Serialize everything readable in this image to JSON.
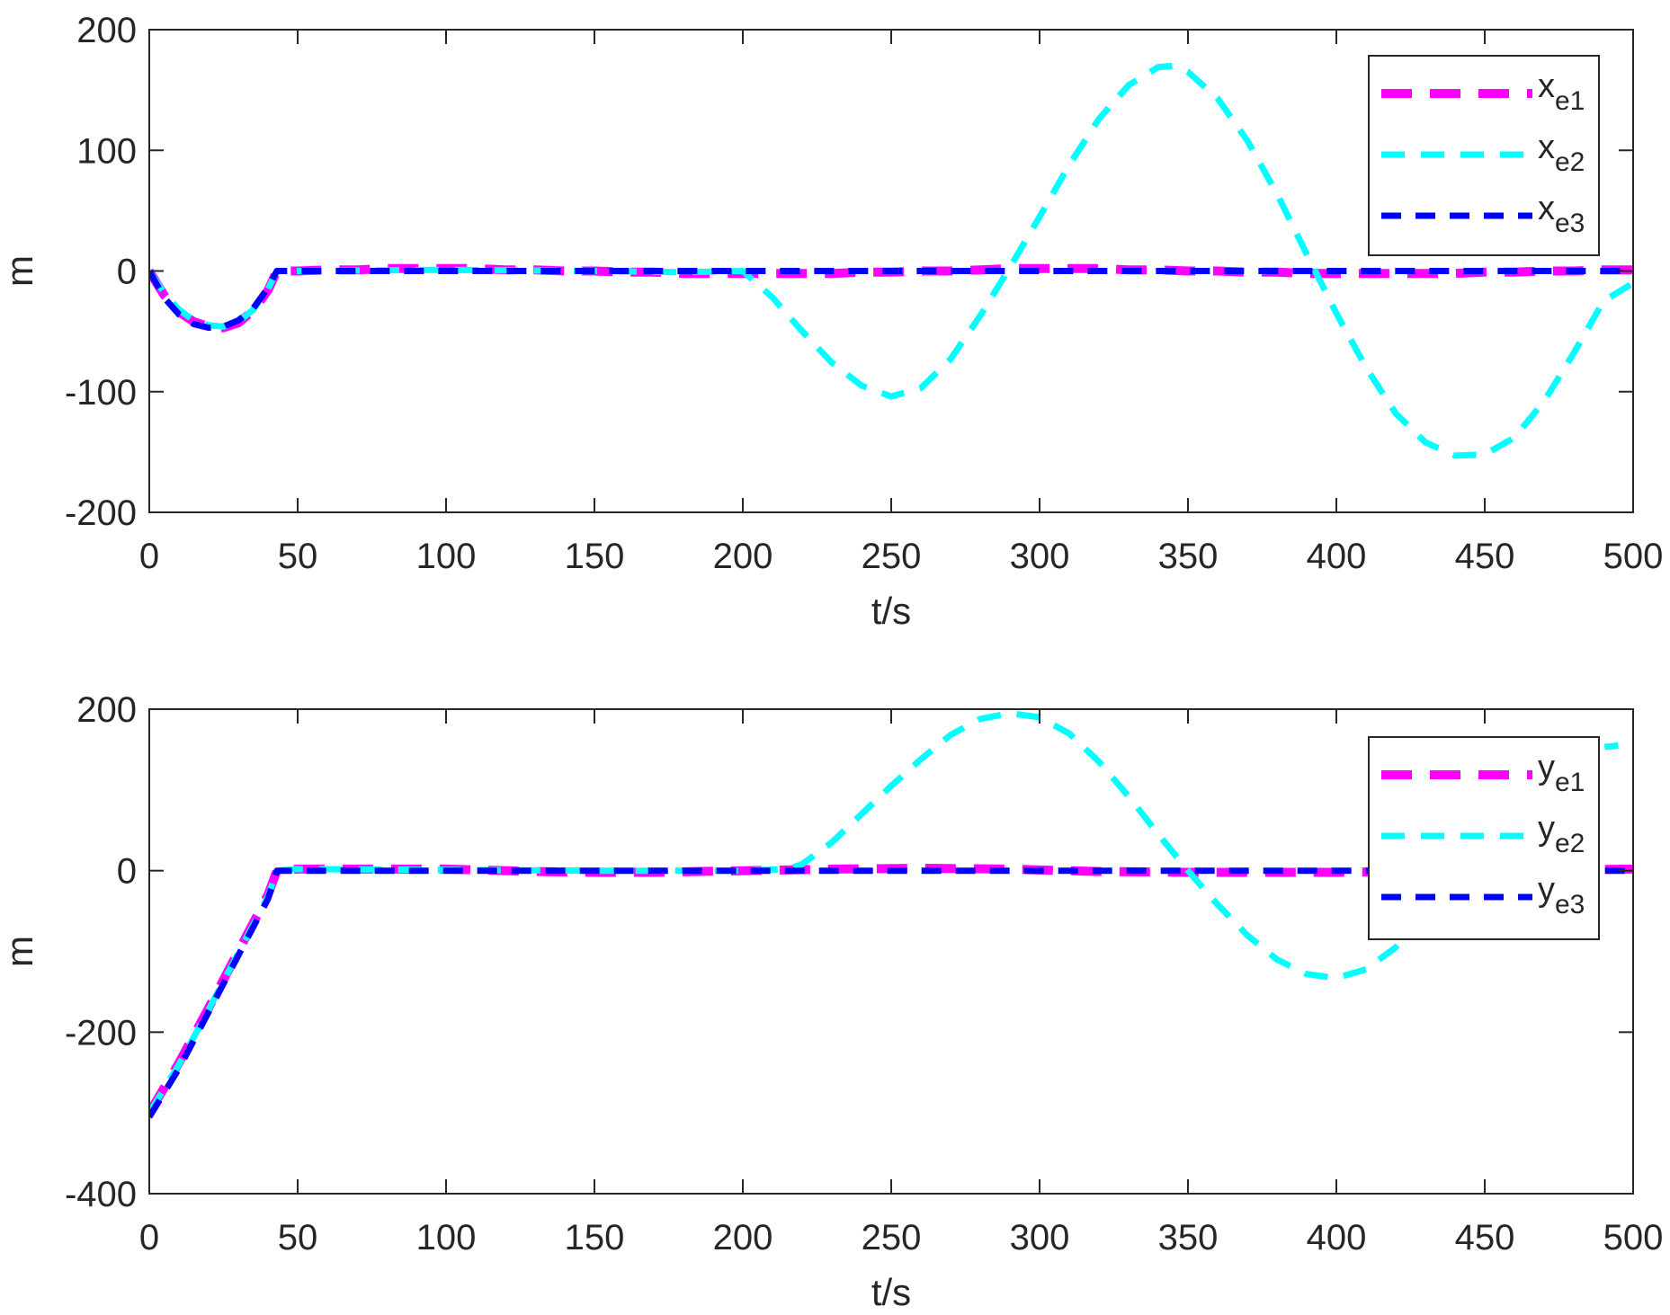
{
  "chart_data": [
    {
      "type": "line",
      "xlabel": "t/s",
      "ylabel": "m",
      "xlim": [
        0,
        500
      ],
      "ylim": [
        -200,
        200
      ],
      "xticks": [
        0,
        50,
        100,
        150,
        200,
        250,
        300,
        350,
        400,
        450,
        500
      ],
      "yticks": [
        -200,
        -100,
        0,
        100,
        200
      ],
      "grid": false,
      "legend_position": "top-right",
      "series": [
        {
          "name": "x_e1",
          "label_base": "x",
          "label_sub": "e1",
          "color": "#ff00ff",
          "style": "long-dash",
          "x": [
            0,
            5,
            10,
            15,
            20,
            25,
            30,
            35,
            40,
            43,
            50,
            60,
            70,
            80,
            90,
            100,
            110,
            120,
            130,
            140,
            150,
            160,
            170,
            180,
            190,
            200,
            210,
            220,
            230,
            240,
            250,
            260,
            270,
            280,
            290,
            300,
            310,
            320,
            330,
            340,
            350,
            360,
            370,
            380,
            390,
            400,
            410,
            420,
            430,
            440,
            450,
            460,
            470,
            480,
            490,
            500
          ],
          "y": [
            0,
            -20,
            -34,
            -42,
            -46,
            -47,
            -43,
            -33,
            -16,
            0,
            0,
            1,
            1,
            2,
            2,
            2,
            2,
            1,
            1,
            0,
            0,
            -1,
            -1,
            -2,
            -2,
            -2,
            -2,
            -2,
            -2,
            -1,
            -1,
            0,
            0,
            1,
            2,
            2,
            2,
            2,
            1,
            1,
            0,
            0,
            -1,
            -1,
            -2,
            -2,
            -2,
            -2,
            -2,
            -2,
            -1,
            -1,
            0,
            0,
            1,
            1
          ]
        },
        {
          "name": "x_e2",
          "label_base": "x",
          "label_sub": "e2",
          "color": "#00ffff",
          "style": "dash",
          "x": [
            0,
            5,
            10,
            15,
            20,
            25,
            30,
            35,
            40,
            43,
            50,
            100,
            150,
            180,
            200,
            210,
            220,
            230,
            240,
            250,
            260,
            270,
            280,
            290,
            300,
            310,
            320,
            330,
            340,
            345,
            350,
            360,
            370,
            380,
            390,
            400,
            410,
            420,
            430,
            440,
            450,
            460,
            470,
            480,
            490,
            500
          ],
          "y": [
            0,
            -18,
            -32,
            -41,
            -45,
            -46,
            -42,
            -32,
            -15,
            0,
            0,
            1,
            0,
            -1,
            0,
            -22,
            -50,
            -76,
            -95,
            -104,
            -97,
            -73,
            -37,
            3,
            45,
            88,
            126,
            154,
            169,
            170,
            165,
            143,
            108,
            64,
            14,
            -35,
            -80,
            -118,
            -142,
            -153,
            -152,
            -138,
            -108,
            -68,
            -25,
            -10
          ]
        },
        {
          "name": "x_e3",
          "label_base": "x",
          "label_sub": "e3",
          "color": "#0000ff",
          "style": "short-dash",
          "x": [
            0,
            5,
            10,
            15,
            20,
            25,
            30,
            35,
            40,
            43,
            50,
            500
          ],
          "y": [
            0,
            -22,
            -36,
            -44,
            -47,
            -46,
            -41,
            -31,
            -14,
            0,
            0,
            0
          ]
        }
      ]
    },
    {
      "type": "line",
      "xlabel": "t/s",
      "ylabel": "m",
      "xlim": [
        0,
        500
      ],
      "ylim": [
        -400,
        200
      ],
      "xticks": [
        0,
        50,
        100,
        150,
        200,
        250,
        300,
        350,
        400,
        450,
        500
      ],
      "yticks": [
        -400,
        -200,
        0,
        200
      ],
      "grid": false,
      "legend_position": "top-right",
      "series": [
        {
          "name": "y_e1",
          "label_base": "y",
          "label_sub": "e1",
          "color": "#ff00ff",
          "style": "long-dash",
          "x": [
            0,
            10,
            20,
            30,
            40,
            43,
            50,
            100,
            130,
            150,
            170,
            200,
            230,
            260,
            290,
            320,
            350,
            400,
            450,
            500
          ],
          "y": [
            -300,
            -238,
            -170,
            -100,
            -30,
            0,
            2,
            2,
            -1,
            -2,
            -2,
            0,
            2,
            3,
            2,
            -1,
            -2,
            -2,
            0,
            2
          ]
        },
        {
          "name": "y_e2",
          "label_base": "y",
          "label_sub": "e2",
          "color": "#00ffff",
          "style": "dash",
          "x": [
            0,
            10,
            20,
            30,
            40,
            43,
            50,
            100,
            150,
            200,
            215,
            220,
            230,
            240,
            250,
            260,
            270,
            280,
            290,
            300,
            310,
            320,
            330,
            340,
            350,
            360,
            370,
            380,
            390,
            400,
            410,
            420,
            430,
            440,
            450,
            460,
            470,
            480,
            490,
            495
          ],
          "y": [
            -300,
            -240,
            -172,
            -102,
            -32,
            0,
            2,
            1,
            0,
            0,
            2,
            8,
            35,
            70,
            105,
            138,
            168,
            188,
            195,
            190,
            170,
            135,
            92,
            45,
            0,
            -42,
            -80,
            -110,
            -128,
            -133,
            -122,
            -95,
            -55,
            -10,
            40,
            85,
            120,
            143,
            153,
            155
          ]
        },
        {
          "name": "y_e3",
          "label_base": "y",
          "label_sub": "e3",
          "color": "#0000ff",
          "style": "short-dash",
          "x": [
            0,
            10,
            20,
            30,
            40,
            43,
            50,
            500
          ],
          "y": [
            -305,
            -245,
            -175,
            -105,
            -35,
            0,
            0,
            0
          ]
        }
      ]
    }
  ]
}
